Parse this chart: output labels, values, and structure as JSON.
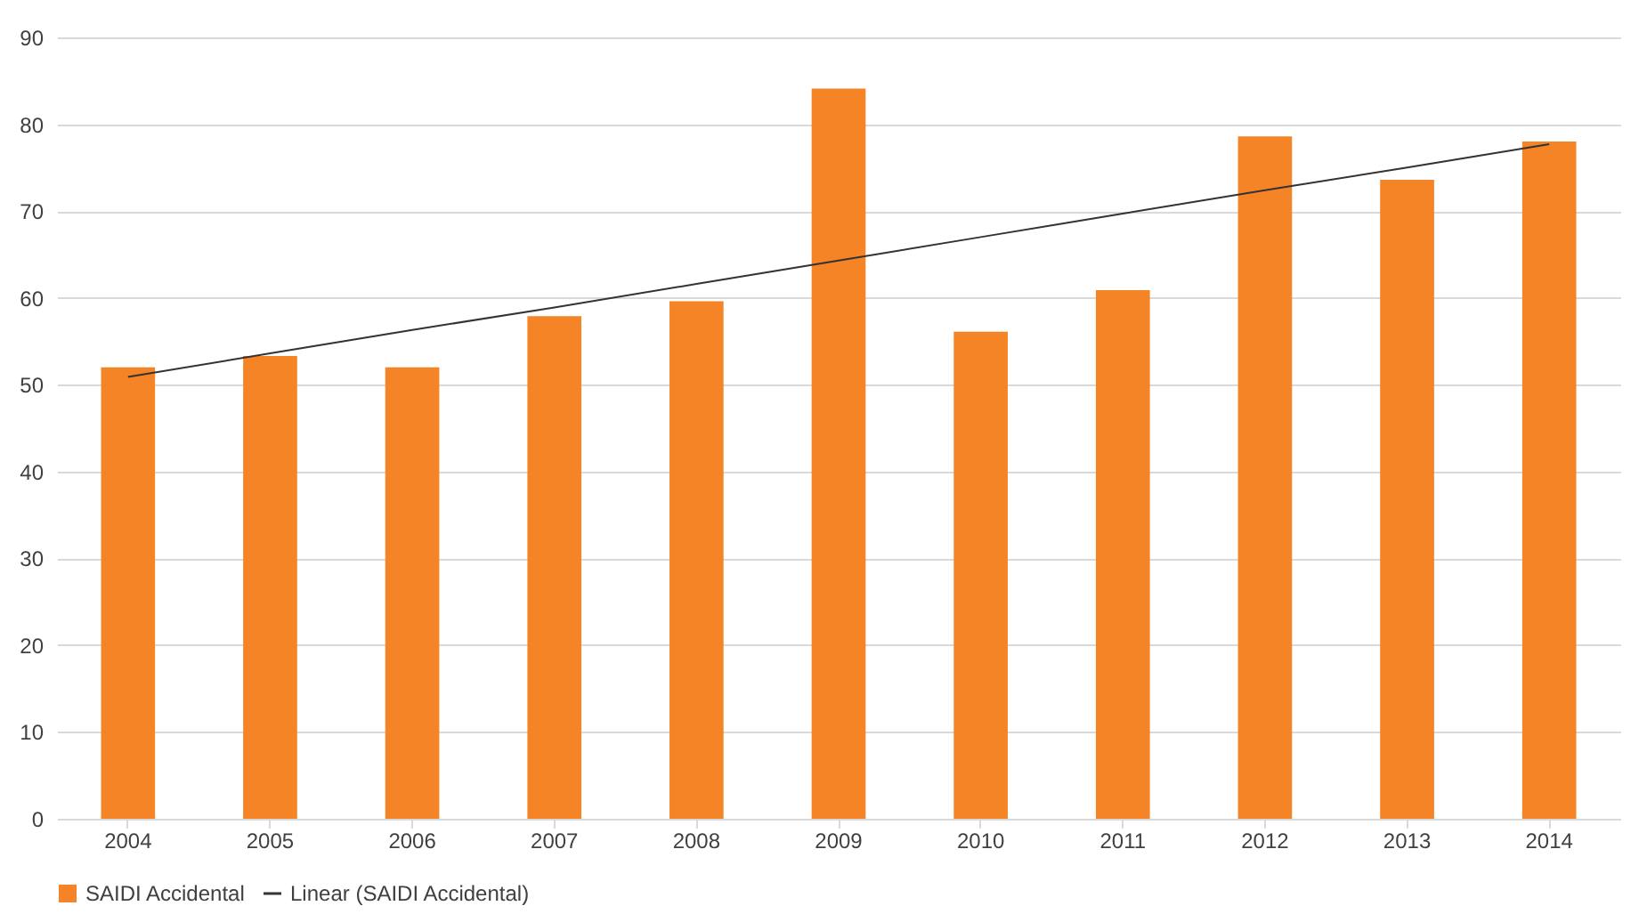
{
  "chart_data": {
    "type": "bar",
    "categories": [
      "2004",
      "2005",
      "2006",
      "2007",
      "2008",
      "2009",
      "2010",
      "2011",
      "2012",
      "2013",
      "2014"
    ],
    "series": [
      {
        "name": "SAIDI Accidental",
        "color": "#f58426",
        "values": [
          52.0,
          53.3,
          52.0,
          57.9,
          59.6,
          84.1,
          56.1,
          60.9,
          78.6,
          73.6,
          78.0
        ]
      },
      {
        "name": "Linear (SAIDI Accidental)",
        "type": "line",
        "color": "#333333",
        "values": [
          50.9,
          53.6,
          56.3,
          58.9,
          61.6,
          64.3,
          67.0,
          69.7,
          72.4,
          75.0,
          77.7
        ]
      }
    ],
    "ylim": [
      0,
      90
    ],
    "yticks": [
      0,
      10,
      20,
      30,
      40,
      50,
      60,
      70,
      80,
      90
    ],
    "grid": "y",
    "legend": "bottom"
  }
}
